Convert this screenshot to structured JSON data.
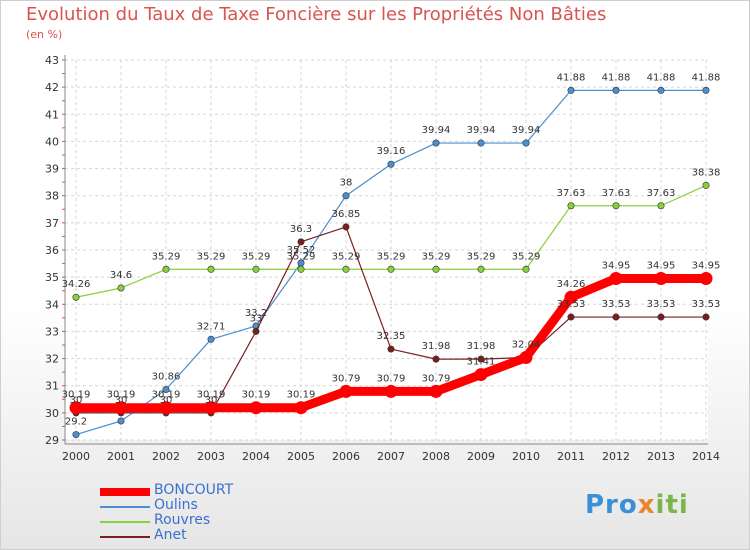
{
  "title": "Evolution du Taux de Taxe Foncière sur les Propriétés Non Bâties",
  "subtitle": "(en %)",
  "logo": "Proxiti",
  "chart_data": {
    "type": "line",
    "x": [
      "2000",
      "2001",
      "2002",
      "2003",
      "2004",
      "2005",
      "2006",
      "2007",
      "2008",
      "2009",
      "2010",
      "2011",
      "2012",
      "2013",
      "2014"
    ],
    "ylim": [
      29,
      43
    ],
    "yticks": [
      29,
      30,
      31,
      32,
      33,
      34,
      35,
      36,
      37,
      38,
      39,
      40,
      41,
      42,
      43
    ],
    "grid": true,
    "legend_position": "bottom-left",
    "series": [
      {
        "name": "BONCOURT",
        "color": "#ff0000",
        "values": [
          30.19,
          30.19,
          30.19,
          30.19,
          30.19,
          30.19,
          30.79,
          30.79,
          30.79,
          31.41,
          32.04,
          34.26,
          34.95,
          34.95,
          34.95
        ],
        "labels": [
          "30.19",
          "30.19",
          "30.19",
          "30.19",
          "30.19",
          "30.19",
          "30.79",
          "30.79",
          "30.79",
          "31.41",
          "32.04",
          "34.26",
          "34.95",
          "34.95",
          "34.95"
        ]
      },
      {
        "name": "Oulins",
        "color": "#4a8fd0",
        "values": [
          29.2,
          29.7,
          30.86,
          32.71,
          33.2,
          35.52,
          38,
          39.16,
          39.94,
          39.94,
          39.94,
          41.88,
          41.88,
          41.88,
          41.88
        ],
        "labels": [
          "29.2",
          "",
          "30.86",
          "32.71",
          "33.2",
          "35.52",
          "38",
          "39.16",
          "39.94",
          "39.94",
          "39.94",
          "41.88",
          "41.88",
          "41.88",
          "41.88"
        ]
      },
      {
        "name": "Rouvres",
        "color": "#88d03c",
        "values": [
          34.26,
          34.6,
          35.29,
          35.29,
          35.29,
          35.29,
          35.29,
          35.29,
          35.29,
          35.29,
          35.29,
          37.63,
          37.63,
          37.63,
          38.38
        ],
        "labels": [
          "34.26",
          "34.6",
          "35.29",
          "35.29",
          "35.29",
          "35.29",
          "35.29",
          "35.29",
          "35.29",
          "35.29",
          "35.29",
          "37.63",
          "37.63",
          "37.63",
          "38.38"
        ]
      },
      {
        "name": "Anet",
        "color": "#7a1f1f",
        "values": [
          30,
          30,
          30,
          30,
          33,
          36.3,
          36.85,
          32.35,
          31.98,
          31.98,
          32.04,
          33.53,
          33.53,
          33.53,
          33.53
        ],
        "labels": [
          "30",
          "30",
          "30",
          "30",
          "33",
          "36.3",
          "36.85",
          "32.35",
          "31.98",
          "31.98",
          "",
          "33.53",
          "33.53",
          "33.53",
          "33.53"
        ]
      }
    ]
  }
}
